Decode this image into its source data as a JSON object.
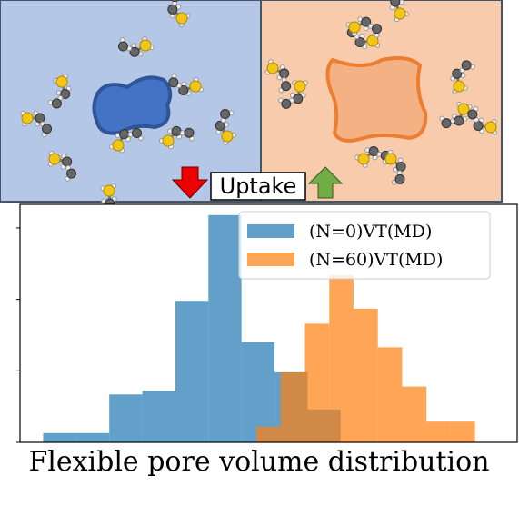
{
  "figure": {
    "label": "Uptake",
    "caption": "Flexible pore volume distribution"
  },
  "chart_data": {
    "type": "histogram",
    "xlim": [
      -0.7,
      14.34
    ],
    "ylim": [
      0,
      3.33
    ],
    "yticks": [
      0,
      1,
      2,
      3
    ],
    "legend": "upper right",
    "series": [
      {
        "name": "(N=0)VT(MD)",
        "color": "#1f77b4",
        "bins": [
          0,
          1,
          2,
          3,
          4,
          5,
          6,
          7,
          8,
          9
        ],
        "values": [
          0.13,
          0.13,
          0.67,
          0.72,
          1.98,
          3.18,
          1.4,
          0.98,
          0.46
        ]
      },
      {
        "name": "(N=60)VT(MD)",
        "color": "#ff7f0e",
        "bins": [
          6.45,
          7.185,
          7.92,
          8.655,
          9.39,
          10.125,
          10.86,
          11.595,
          12.33,
          13.065
        ],
        "values": [
          0.22,
          0.98,
          1.66,
          2.34,
          1.87,
          1.33,
          0.78,
          0.29,
          0.29
        ]
      }
    ]
  }
}
